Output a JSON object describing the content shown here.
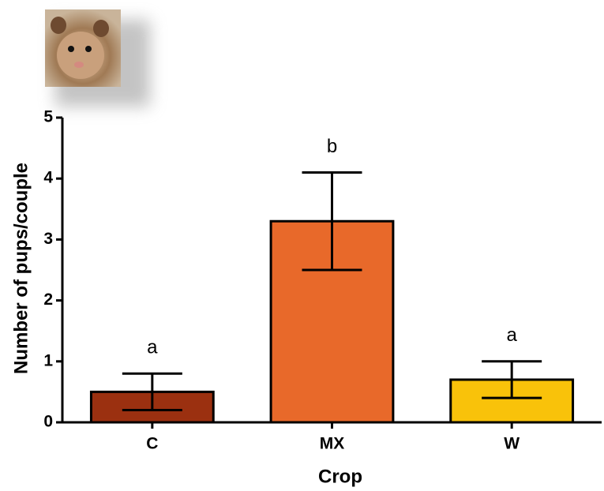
{
  "chart_data": {
    "type": "bar",
    "categories": [
      "C",
      "MX",
      "W"
    ],
    "values": [
      0.5,
      3.3,
      0.7
    ],
    "errors": [
      0.3,
      0.8,
      0.3
    ],
    "annotations": [
      "a",
      "b",
      "a"
    ],
    "colors": [
      "#9b3010",
      "#e8692a",
      "#f9c20a"
    ],
    "xlabel": "Crop",
    "ylabel": "Number of pups/couple",
    "ylim": [
      0,
      5
    ],
    "yticks": [
      0,
      1,
      2,
      3,
      4,
      5
    ]
  }
}
